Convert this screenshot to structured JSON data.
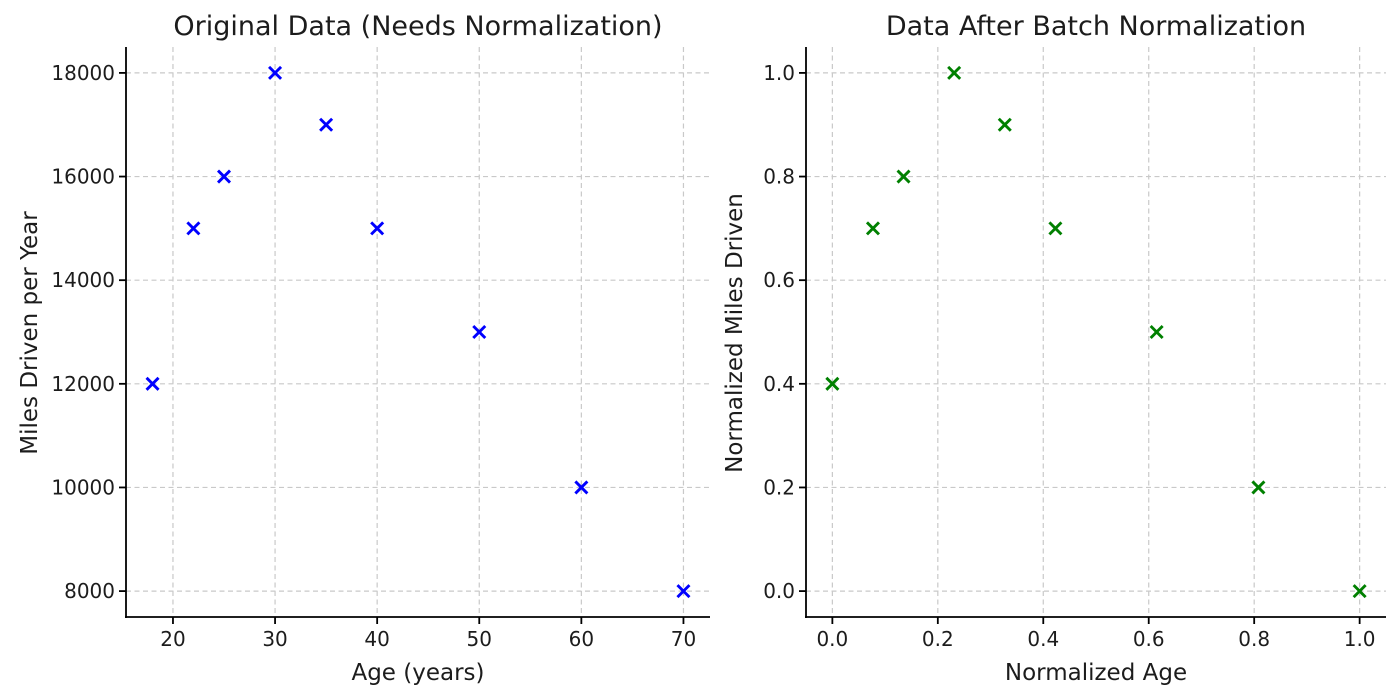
{
  "figure": {
    "background_color": "#ffffff",
    "text_color": "#1c1c1c",
    "grid_color": "#c9c9c9",
    "spine_color": "#000000"
  },
  "chart_data": [
    {
      "type": "scatter",
      "title": "Original Data (Needs Normalization)",
      "xlabel": "Age (years)",
      "ylabel": "Miles Driven per Year",
      "marker": "x",
      "marker_color": "#0000ff",
      "grid": true,
      "legend": null,
      "x": [
        18,
        22,
        25,
        30,
        35,
        40,
        50,
        60,
        70
      ],
      "y": [
        12000,
        15000,
        16000,
        18000,
        17000,
        15000,
        13000,
        10000,
        8000
      ],
      "xlim": [
        15.4,
        72.6
      ],
      "ylim": [
        7500,
        18500
      ],
      "xticks": [
        20,
        30,
        40,
        50,
        60,
        70
      ],
      "yticks": [
        8000,
        10000,
        12000,
        14000,
        16000,
        18000
      ],
      "xtick_labels": [
        "20",
        "30",
        "40",
        "50",
        "60",
        "70"
      ],
      "ytick_labels": [
        "8000",
        "10000",
        "12000",
        "14000",
        "16000",
        "18000"
      ]
    },
    {
      "type": "scatter",
      "title": "Data After Batch Normalization",
      "xlabel": "Normalized Age",
      "ylabel": "Normalized Miles Driven",
      "marker": "x",
      "marker_color": "#008000",
      "grid": true,
      "legend": null,
      "x": [
        0.0,
        0.077,
        0.135,
        0.231,
        0.327,
        0.423,
        0.615,
        0.808,
        1.0
      ],
      "y": [
        0.4,
        0.7,
        0.8,
        1.0,
        0.9,
        0.7,
        0.5,
        0.2,
        0.0
      ],
      "xlim": [
        -0.05,
        1.05
      ],
      "ylim": [
        -0.05,
        1.05
      ],
      "xticks": [
        0.0,
        0.2,
        0.4,
        0.6,
        0.8,
        1.0
      ],
      "yticks": [
        0.0,
        0.2,
        0.4,
        0.6,
        0.8,
        1.0
      ],
      "xtick_labels": [
        "0.0",
        "0.2",
        "0.4",
        "0.6",
        "0.8",
        "1.0"
      ],
      "ytick_labels": [
        "0.0",
        "0.2",
        "0.4",
        "0.6",
        "0.8",
        "1.0"
      ]
    }
  ]
}
